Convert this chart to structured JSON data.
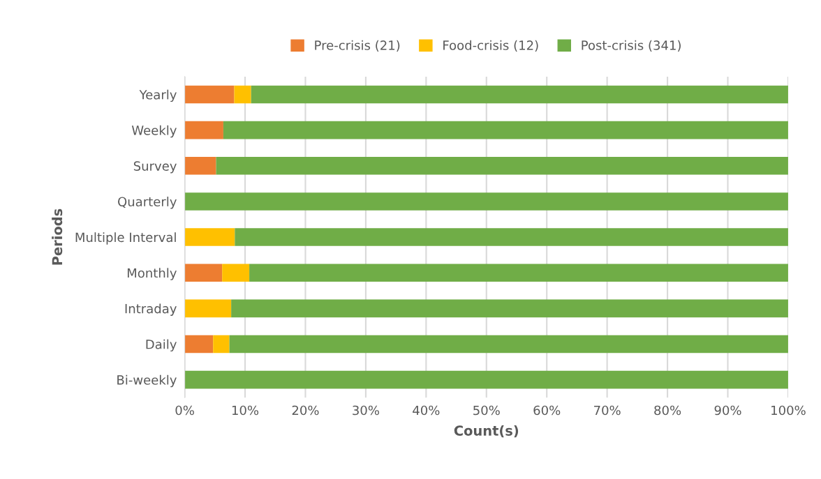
{
  "chart_data": {
    "type": "bar",
    "orientation": "horizontal",
    "stacked": true,
    "xlabel": "Count(s)",
    "ylabel": "Periods",
    "categories": [
      "Yearly",
      "Weekly",
      "Survey",
      "Quarterly",
      "Multiple Interval",
      "Monthly",
      "Intraday",
      "Daily",
      "Bi-weekly"
    ],
    "series": [
      {
        "name": "Pre-crisis (21)",
        "color": "#ed7d31",
        "values": [
          8.2,
          6.4,
          5.2,
          0,
          0,
          6.2,
          0,
          4.7,
          0
        ]
      },
      {
        "name": "Food-crisis (12)",
        "color": "#ffc000",
        "values": [
          2.8,
          0,
          0,
          0,
          8.3,
          4.5,
          7.7,
          2.7,
          0
        ]
      },
      {
        "name": "Post-crisis (341)",
        "color": "#70ad47",
        "values": [
          89.0,
          93.6,
          94.8,
          100,
          91.7,
          89.3,
          92.3,
          92.6,
          100
        ]
      }
    ],
    "xlim": [
      0,
      100
    ],
    "xticks": [
      {
        "value": 0,
        "label": "0%"
      },
      {
        "value": 10,
        "label": "10%"
      },
      {
        "value": 20,
        "label": "20%"
      },
      {
        "value": 30,
        "label": "30%"
      },
      {
        "value": 40,
        "label": "40%"
      },
      {
        "value": 50,
        "label": "50%"
      },
      {
        "value": 60,
        "label": "60%"
      },
      {
        "value": 70,
        "label": "70%"
      },
      {
        "value": 80,
        "label": "80%"
      },
      {
        "value": 90,
        "label": "90%"
      },
      {
        "value": 100,
        "label": "100%"
      }
    ],
    "grid": "x",
    "legend": "top"
  }
}
